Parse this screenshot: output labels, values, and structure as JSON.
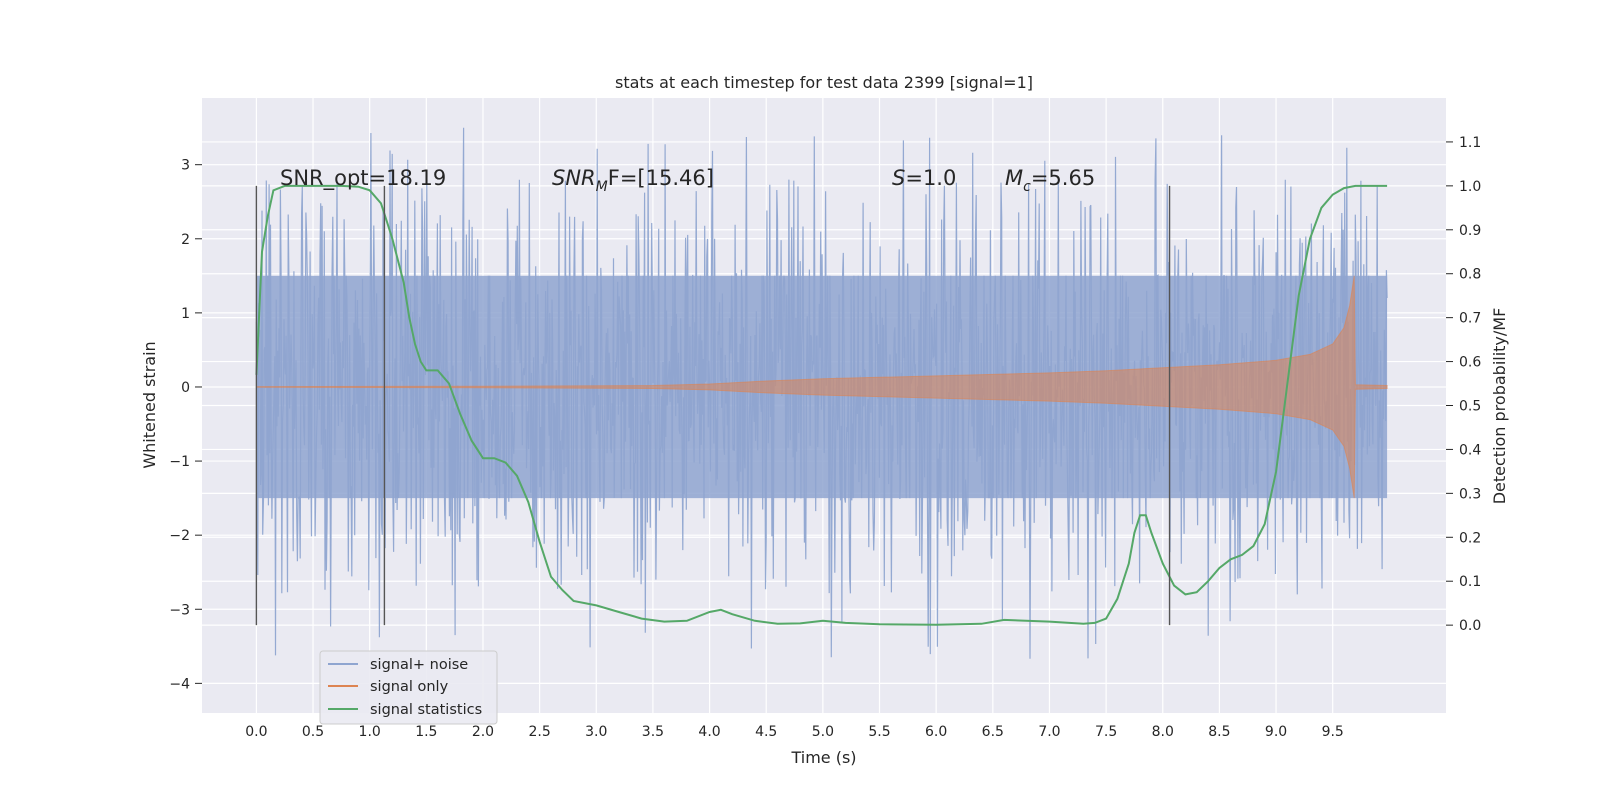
{
  "chart_data": {
    "type": "line",
    "title": "stats at each timestep for test data 2399 [signal=1]",
    "xlabel": "Time (s)",
    "ylabel_left": "Whitened strain",
    "ylabel_right": "Detection probability/MF",
    "x_ticks": [
      "0.0",
      "0.5",
      "1.0",
      "1.5",
      "2.0",
      "2.5",
      "3.0",
      "3.5",
      "4.0",
      "4.5",
      "5.0",
      "5.5",
      "6.0",
      "6.5",
      "7.0",
      "7.5",
      "8.0",
      "8.5",
      "9.0",
      "9.5"
    ],
    "y_left_ticks": [
      "3",
      "2",
      "1",
      "0",
      "−1",
      "−2",
      "−3",
      "−4"
    ],
    "y_right_ticks": [
      "1.1",
      "1.0",
      "0.9",
      "0.8",
      "0.7",
      "0.6",
      "0.5",
      "0.4",
      "0.3",
      "0.2",
      "0.1",
      "0.0"
    ],
    "xlim": [
      -0.48,
      10.5
    ],
    "ylim_left": [
      -4.4,
      3.9
    ],
    "ylim_right": [
      -0.2,
      1.2
    ],
    "grid": true,
    "legend_position": "lower-left",
    "annotations": {
      "snr_opt": "SNR_opt=18.19",
      "snr_mf_main": "SNR",
      "snr_mf_sub": "M",
      "snr_mf_rest": "F=[15.46]",
      "s_main": "S",
      "s_rest": "=1.0",
      "mc_main": "M",
      "mc_sub": "c",
      "mc_rest": "=5.65"
    },
    "vertical_markers_s": [
      0.0,
      1.13,
      8.06
    ],
    "series": [
      {
        "name": "signal+ noise",
        "color": "#8fa5d0",
        "t_range": [
          0.0,
          9.98
        ],
        "envelope": {
          "core_abs": 1.5,
          "peak_max": 3.5,
          "peak_min": -3.7
        }
      },
      {
        "name": "signal only",
        "color": "#dd8452",
        "envelope_points": [
          [
            0.0,
            0.005
          ],
          [
            2.0,
            0.01
          ],
          [
            3.5,
            0.02
          ],
          [
            4.0,
            0.04
          ],
          [
            4.5,
            0.08
          ],
          [
            5.0,
            0.11
          ],
          [
            5.5,
            0.13
          ],
          [
            6.0,
            0.15
          ],
          [
            6.5,
            0.17
          ],
          [
            7.0,
            0.19
          ],
          [
            7.5,
            0.22
          ],
          [
            8.0,
            0.26
          ],
          [
            8.5,
            0.3
          ],
          [
            9.0,
            0.36
          ],
          [
            9.3,
            0.44
          ],
          [
            9.5,
            0.58
          ],
          [
            9.6,
            0.8
          ],
          [
            9.65,
            1.1
          ],
          [
            9.69,
            1.5
          ],
          [
            9.7,
            0.03
          ],
          [
            9.98,
            0.02
          ]
        ]
      },
      {
        "name": "signal statistics",
        "color": "#55a868",
        "points": [
          [
            0.0,
            0.57
          ],
          [
            0.05,
            0.85
          ],
          [
            0.1,
            0.93
          ],
          [
            0.15,
            0.99
          ],
          [
            0.25,
            1.0
          ],
          [
            0.5,
            1.0
          ],
          [
            0.75,
            1.0
          ],
          [
            0.9,
            0.998
          ],
          [
            1.0,
            0.99
          ],
          [
            1.1,
            0.96
          ],
          [
            1.15,
            0.92
          ],
          [
            1.2,
            0.88
          ],
          [
            1.3,
            0.78
          ],
          [
            1.35,
            0.7
          ],
          [
            1.4,
            0.64
          ],
          [
            1.45,
            0.6
          ],
          [
            1.5,
            0.58
          ],
          [
            1.6,
            0.58
          ],
          [
            1.7,
            0.55
          ],
          [
            1.8,
            0.48
          ],
          [
            1.9,
            0.42
          ],
          [
            2.0,
            0.38
          ],
          [
            2.1,
            0.38
          ],
          [
            2.2,
            0.37
          ],
          [
            2.3,
            0.34
          ],
          [
            2.4,
            0.28
          ],
          [
            2.5,
            0.19
          ],
          [
            2.6,
            0.11
          ],
          [
            2.7,
            0.08
          ],
          [
            2.8,
            0.055
          ],
          [
            3.0,
            0.045
          ],
          [
            3.2,
            0.03
          ],
          [
            3.4,
            0.015
          ],
          [
            3.6,
            0.008
          ],
          [
            3.8,
            0.01
          ],
          [
            4.0,
            0.03
          ],
          [
            4.1,
            0.035
          ],
          [
            4.2,
            0.025
          ],
          [
            4.4,
            0.01
          ],
          [
            4.6,
            0.003
          ],
          [
            4.8,
            0.004
          ],
          [
            5.0,
            0.01
          ],
          [
            5.2,
            0.005
          ],
          [
            5.5,
            0.002
          ],
          [
            6.0,
            0.001
          ],
          [
            6.4,
            0.003
          ],
          [
            6.6,
            0.012
          ],
          [
            7.0,
            0.008
          ],
          [
            7.3,
            0.003
          ],
          [
            7.4,
            0.005
          ],
          [
            7.5,
            0.015
          ],
          [
            7.6,
            0.06
          ],
          [
            7.7,
            0.14
          ],
          [
            7.75,
            0.21
          ],
          [
            7.8,
            0.25
          ],
          [
            7.85,
            0.25
          ],
          [
            7.9,
            0.21
          ],
          [
            8.0,
            0.14
          ],
          [
            8.1,
            0.09
          ],
          [
            8.2,
            0.07
          ],
          [
            8.3,
            0.075
          ],
          [
            8.4,
            0.1
          ],
          [
            8.5,
            0.13
          ],
          [
            8.6,
            0.15
          ],
          [
            8.7,
            0.16
          ],
          [
            8.8,
            0.18
          ],
          [
            8.9,
            0.23
          ],
          [
            9.0,
            0.35
          ],
          [
            9.1,
            0.55
          ],
          [
            9.2,
            0.75
          ],
          [
            9.3,
            0.88
          ],
          [
            9.4,
            0.95
          ],
          [
            9.5,
            0.98
          ],
          [
            9.6,
            0.995
          ],
          [
            9.7,
            1.0
          ],
          [
            9.98,
            1.0
          ]
        ]
      }
    ]
  }
}
